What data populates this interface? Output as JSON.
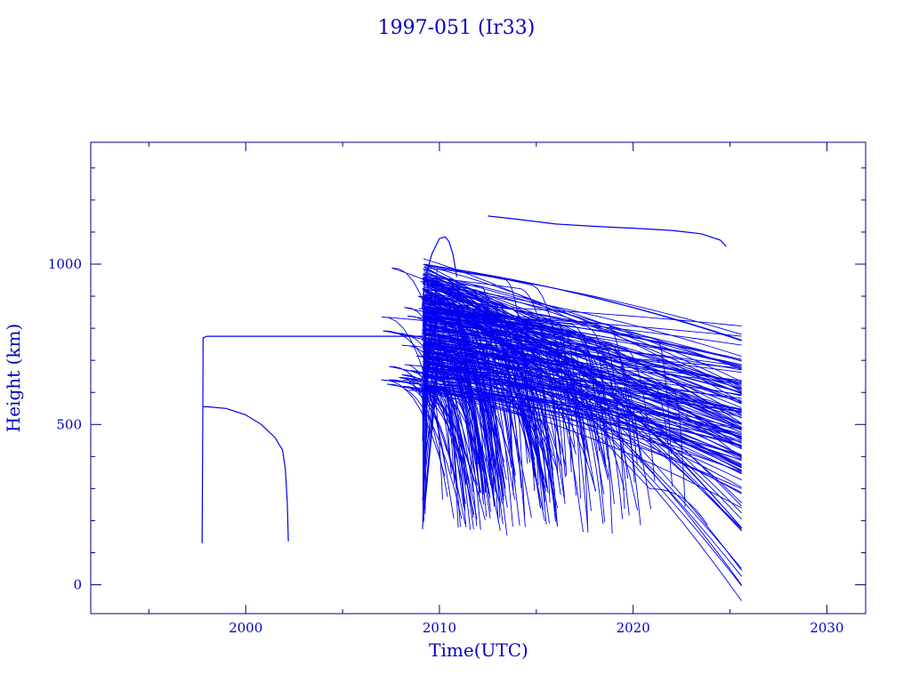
{
  "chart_data": {
    "type": "line",
    "title": "1997-051 (Ir33)",
    "xlabel": "Time(UTC)",
    "ylabel": "Height (km)",
    "xlim": [
      1992,
      2032
    ],
    "ylim": [
      -90,
      1380
    ],
    "x_ticks": [
      2000,
      2010,
      2020,
      2030
    ],
    "y_ticks": [
      0,
      500,
      1000
    ],
    "color": "#0000ee",
    "frame_color": "#000080",
    "grid": false,
    "legend": "none",
    "series": [
      {
        "x": [
          1997.75,
          1997.78,
          1997.8,
          1998.0,
          2009.15
        ],
        "y": [
          130,
          500,
          770,
          775,
          775
        ]
      },
      {
        "x": [
          1997.82,
          1998.0,
          1999.0,
          2000.0,
          2000.8,
          2001.5,
          2001.9,
          2002.05,
          2002.15,
          2002.2
        ],
        "y": [
          555,
          555,
          550,
          530,
          500,
          460,
          420,
          360,
          250,
          135
        ]
      },
      {
        "x": [
          2009.1,
          2009.25,
          2009.6,
          2010.0,
          2010.3,
          2010.5,
          2010.7,
          2010.9
        ],
        "y": [
          860,
          950,
          1030,
          1080,
          1085,
          1070,
          1030,
          960
        ]
      },
      {
        "x": [
          2012.5,
          2014.0,
          2016.0,
          2018.0,
          2020.0,
          2022.0,
          2023.5,
          2024.5,
          2024.8
        ],
        "y": [
          1150,
          1140,
          1125,
          1118,
          1112,
          1105,
          1095,
          1075,
          1055
        ]
      }
    ],
    "debris_cloud": {
      "start_year": 2009.12,
      "end_year": 2025.6,
      "top_km": 1020,
      "core_km": [
        600,
        880
      ],
      "min_decay_km": 150
    }
  }
}
